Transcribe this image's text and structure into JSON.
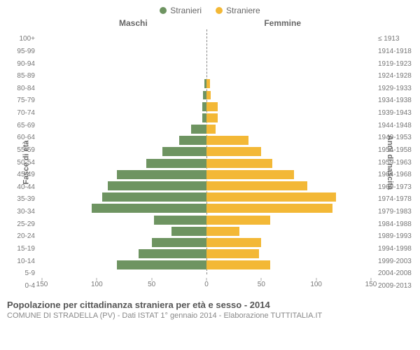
{
  "legend": {
    "male": {
      "label": "Stranieri",
      "color": "#6e9461"
    },
    "female": {
      "label": "Straniere",
      "color": "#f3b836"
    }
  },
  "headers": {
    "left": "Maschi",
    "right": "Femmine"
  },
  "axis": {
    "left_title": "Fasce di età",
    "right_title": "Anni di nascita",
    "xmax": 150,
    "xticks_left": [
      150,
      100,
      50,
      0
    ],
    "xticks_right": [
      50,
      100,
      150
    ]
  },
  "title": "Popolazione per cittadinanza straniera per età e sesso - 2014",
  "subtitle": "COMUNE DI STRADELLA (PV) - Dati ISTAT 1° gennaio 2014 - Elaborazione TUTTITALIA.IT",
  "rows": [
    {
      "age": "100+",
      "birth": "≤ 1913",
      "m": 0,
      "f": 0
    },
    {
      "age": "95-99",
      "birth": "1914-1918",
      "m": 0,
      "f": 0
    },
    {
      "age": "90-94",
      "birth": "1919-1923",
      "m": 0,
      "f": 0
    },
    {
      "age": "85-89",
      "birth": "1924-1928",
      "m": 0,
      "f": 0
    },
    {
      "age": "80-84",
      "birth": "1929-1933",
      "m": 2,
      "f": 3
    },
    {
      "age": "75-79",
      "birth": "1934-1938",
      "m": 3,
      "f": 4
    },
    {
      "age": "70-74",
      "birth": "1939-1943",
      "m": 4,
      "f": 10
    },
    {
      "age": "65-69",
      "birth": "1944-1948",
      "m": 4,
      "f": 10
    },
    {
      "age": "60-64",
      "birth": "1949-1953",
      "m": 14,
      "f": 8
    },
    {
      "age": "55-59",
      "birth": "1954-1958",
      "m": 25,
      "f": 38
    },
    {
      "age": "50-54",
      "birth": "1959-1963",
      "m": 40,
      "f": 50
    },
    {
      "age": "45-49",
      "birth": "1964-1968",
      "m": 55,
      "f": 60
    },
    {
      "age": "40-44",
      "birth": "1969-1973",
      "m": 82,
      "f": 80
    },
    {
      "age": "35-39",
      "birth": "1974-1978",
      "m": 90,
      "f": 92
    },
    {
      "age": "30-34",
      "birth": "1979-1983",
      "m": 95,
      "f": 118
    },
    {
      "age": "25-29",
      "birth": "1984-1988",
      "m": 105,
      "f": 115
    },
    {
      "age": "20-24",
      "birth": "1989-1993",
      "m": 48,
      "f": 58
    },
    {
      "age": "15-19",
      "birth": "1994-1998",
      "m": 32,
      "f": 30
    },
    {
      "age": "10-14",
      "birth": "1999-2003",
      "m": 50,
      "f": 50
    },
    {
      "age": "5-9",
      "birth": "2004-2008",
      "m": 62,
      "f": 48
    },
    {
      "age": "0-4",
      "birth": "2009-2013",
      "m": 82,
      "f": 58
    }
  ],
  "colors": {
    "male_bar": "#6e9461",
    "female_bar": "#f3b836",
    "bg": "#ffffff"
  }
}
